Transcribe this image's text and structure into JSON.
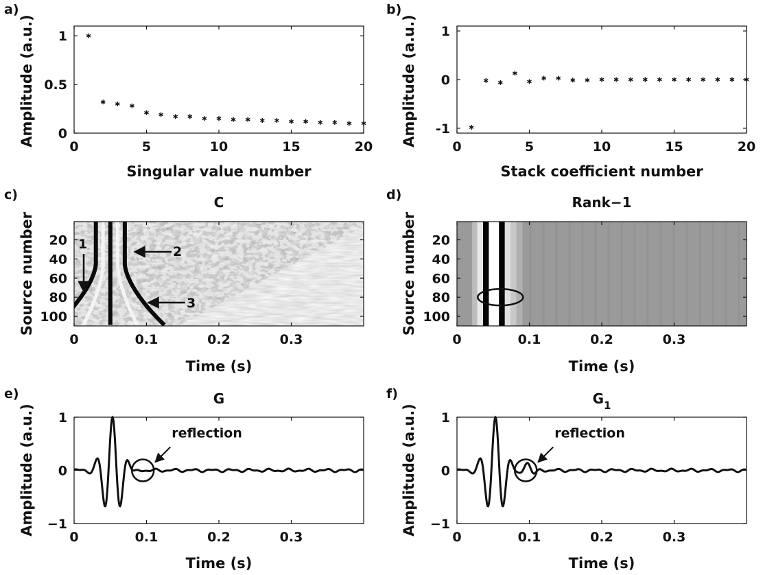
{
  "chart_data": [
    {
      "panel": "a)",
      "type": "scatter",
      "title": "",
      "xlabel": "Singular value number",
      "ylabel": "Amplitude (a.u.)",
      "xlim": [
        0,
        20
      ],
      "ylim": [
        0,
        1.1
      ],
      "xticks": [
        0,
        5,
        10,
        15,
        20
      ],
      "yticks": [
        0,
        0.5,
        1
      ],
      "marker": "asterisk",
      "x": [
        1,
        2,
        3,
        4,
        5,
        6,
        7,
        8,
        9,
        10,
        11,
        12,
        13,
        14,
        15,
        16,
        17,
        18,
        19,
        20
      ],
      "y": [
        1.0,
        0.32,
        0.3,
        0.28,
        0.21,
        0.19,
        0.17,
        0.17,
        0.15,
        0.15,
        0.14,
        0.14,
        0.13,
        0.13,
        0.12,
        0.12,
        0.11,
        0.11,
        0.1,
        0.1
      ]
    },
    {
      "panel": "b)",
      "type": "scatter",
      "title": "",
      "xlabel": "Stack coefficient number",
      "ylabel": "Amplitude (a.u.)",
      "xlim": [
        0,
        20
      ],
      "ylim": [
        -1.1,
        1.1
      ],
      "xticks": [
        0,
        5,
        10,
        15,
        20
      ],
      "yticks": [
        -1,
        0,
        1
      ],
      "marker": "asterisk",
      "x": [
        1,
        2,
        3,
        4,
        5,
        6,
        7,
        8,
        9,
        10,
        11,
        12,
        13,
        14,
        15,
        16,
        17,
        18,
        19,
        20
      ],
      "y": [
        -0.98,
        -0.02,
        -0.06,
        0.13,
        -0.04,
        0.03,
        0.03,
        -0.01,
        -0.01,
        0.0,
        0.0,
        0.0,
        0.0,
        0.0,
        0.0,
        0.0,
        0.0,
        0.0,
        0.0,
        0.0
      ]
    },
    {
      "panel": "c)",
      "type": "heatmap",
      "title": "C",
      "xlabel": "Time (s)",
      "ylabel": "Source number",
      "xlim": [
        0,
        0.4
      ],
      "ylim": [
        110,
        1
      ],
      "xticks": [
        "0",
        "0.1",
        "0.2",
        "0.3"
      ],
      "yticks": [
        "20",
        "40",
        "60",
        "80",
        "100"
      ],
      "colormap": "gray",
      "annotations": [
        "1",
        "2",
        "3"
      ]
    },
    {
      "panel": "d)",
      "type": "heatmap",
      "title": "Rank−1",
      "xlabel": "Time (s)",
      "ylabel": "Source number",
      "xlim": [
        0,
        0.4
      ],
      "ylim": [
        110,
        1
      ],
      "xticks": [
        "0",
        "0.1",
        "0.2",
        "0.3"
      ],
      "yticks": [
        "20",
        "40",
        "60",
        "80",
        "100"
      ],
      "colormap": "gray",
      "highlight_source": 80
    },
    {
      "panel": "e)",
      "type": "line",
      "title": "G",
      "xlabel": "Time (s)",
      "ylabel": "Amplitude (a.u.)",
      "xlim": [
        0,
        0.4
      ],
      "ylim": [
        -1,
        1
      ],
      "xticks": [
        "0",
        "0.1",
        "0.2",
        "0.3"
      ],
      "yticks": [
        "−1",
        "0",
        "1"
      ],
      "annotation": "reflection",
      "reflection_at": 0.095,
      "wavelet": {
        "center": 0.053,
        "freq": 45,
        "sigma": 0.012,
        "amp": 1.0
      },
      "reflection": {
        "center": 0.095,
        "freq": 40,
        "sigma": 0.008,
        "amp": 0.0
      }
    },
    {
      "panel": "f)",
      "type": "line",
      "title": "G",
      "title_subscript": "1",
      "xlabel": "Time (s)",
      "ylabel": "Amplitude (a.u.)",
      "xlim": [
        0,
        0.4
      ],
      "ylim": [
        -1,
        1
      ],
      "xticks": [
        "0",
        "0.1",
        "0.2",
        "0.3"
      ],
      "yticks": [
        "−1",
        "0",
        "1"
      ],
      "annotation": "reflection",
      "reflection_at": 0.095,
      "wavelet": {
        "center": 0.053,
        "freq": 45,
        "sigma": 0.012,
        "amp": 1.0
      },
      "reflection": {
        "center": 0.097,
        "freq": 40,
        "sigma": 0.008,
        "amp": 0.15
      }
    }
  ]
}
